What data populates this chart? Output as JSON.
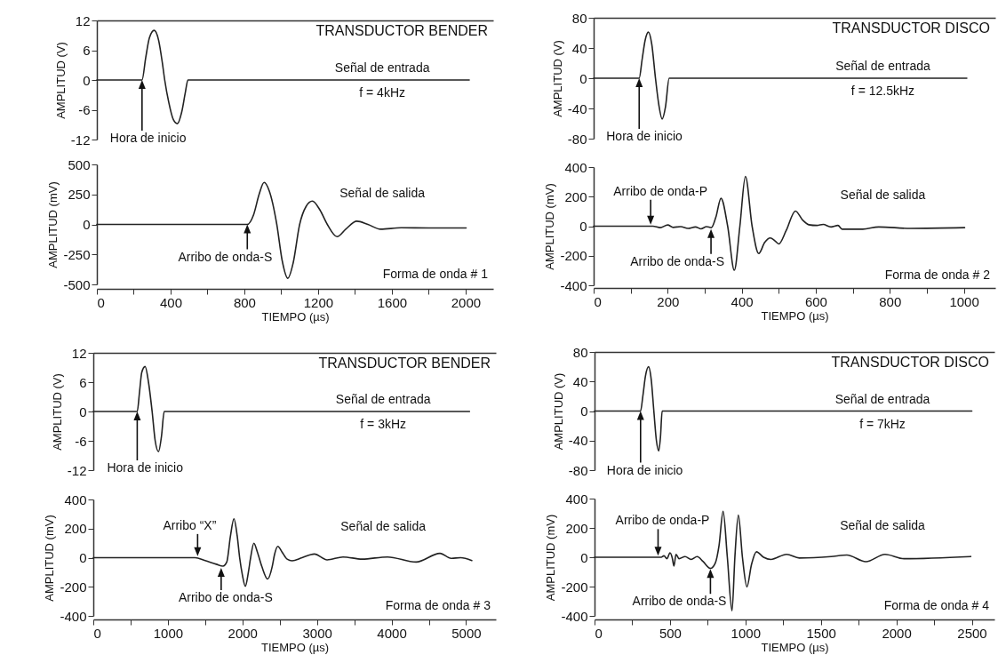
{
  "chart_data": [
    {
      "type": "line",
      "title": "TRANSDUCTOR BENDER",
      "ylabel": "AMPLITUD (V)",
      "tick_labels": "y",
      "xlim": [
        0,
        2150
      ],
      "ylim": [
        -12,
        12
      ],
      "yticks": [
        -12,
        -6,
        0,
        6,
        12
      ],
      "color": "#222222",
      "x": [
        0,
        245,
        265,
        285,
        311,
        335,
        355,
        368,
        390,
        415,
        437,
        460,
        480,
        494,
        2020
      ],
      "values": [
        0,
        0,
        4.5,
        8.5,
        10,
        8,
        3.5,
        0,
        -4.5,
        -8,
        -8.8,
        -6.5,
        -2.5,
        0,
        0
      ],
      "annotations": [
        "Señal de entrada",
        "f = 4kHz",
        "Hora de inicio"
      ]
    },
    {
      "type": "line",
      "xlabel": "TIEMPO (µs)",
      "ylabel": "AMPLITUD (mV)",
      "xlim": [
        0,
        2150
      ],
      "ylim": [
        -500,
        500
      ],
      "yticks": [
        -500,
        -250,
        0,
        250,
        500
      ],
      "color": "#222222",
      "xticks": [
        0,
        {
          "value": 200,
          "label": null
        },
        400,
        {
          "value": 600,
          "label": null
        },
        800,
        {
          "value": 1000,
          "label": null
        },
        1200,
        {
          "value": 1400,
          "label": null
        },
        1600,
        {
          "value": 1800,
          "label": null
        },
        2000
      ],
      "x": [
        0,
        816,
        850,
        880,
        907,
        935,
        976,
        1005,
        1036,
        1065,
        1100,
        1135,
        1169,
        1210,
        1250,
        1303,
        1350,
        1410,
        1470,
        1539,
        1650,
        1800,
        2003
      ],
      "values": [
        0,
        0,
        80,
        250,
        350,
        280,
        0,
        -300,
        -449,
        -320,
        0,
        150,
        194,
        120,
        0,
        -102,
        -40,
        27,
        0,
        -40,
        -28,
        -30,
        -30
      ],
      "annotations": [
        "Señal de salida",
        "Forma de onda # 1",
        {
          "text": "Arribo de onda-S",
          "x": 816,
          "y": 0
        }
      ]
    },
    {
      "type": "line",
      "title": "TRANSDUCTOR DISCO",
      "ylabel": "AMPLITUD (V)",
      "tick_labels": "y",
      "xlim": [
        0,
        1085
      ],
      "ylim": [
        -80,
        80
      ],
      "yticks": [
        -80,
        -40,
        0,
        40,
        80
      ],
      "color": "#222222",
      "x": [
        0,
        123,
        131,
        139,
        148,
        157,
        167,
        176,
        185,
        194,
        204,
        1008
      ],
      "values": [
        0,
        0,
        25,
        50,
        61,
        45,
        0,
        -35,
        -54,
        -38,
        0,
        0
      ],
      "annotations": [
        "Señal de entrada",
        "f = 12.5kHz",
        "Hora de inicio"
      ]
    },
    {
      "type": "line",
      "xlabel": "TIEMPO (µs)",
      "ylabel": "AMPLITUD (mV)",
      "xlim": [
        0,
        1085
      ],
      "ylim": [
        -400,
        400
      ],
      "yticks": [
        -400,
        -200,
        0,
        200,
        400
      ],
      "color": "#222222",
      "xticks": [
        0,
        {
          "value": 100,
          "label": null
        },
        200,
        {
          "value": 300,
          "label": null
        },
        400,
        {
          "value": 500,
          "label": null
        },
        600,
        {
          "value": 700,
          "label": null
        },
        800,
        {
          "value": 900,
          "label": null
        },
        1000
      ],
      "x": [
        0,
        160,
        180,
        200,
        215,
        235,
        255,
        275,
        290,
        305,
        318,
        330,
        344,
        362,
        380,
        395,
        410,
        428,
        446,
        462,
        477,
        490,
        500,
        520,
        545,
        565,
        581,
        603,
        620,
        641,
        660,
        671,
        727,
        770,
        856,
        1002
      ],
      "values": [
        0,
        0,
        -10,
        8,
        -8,
        -3,
        -15,
        -5,
        -18,
        -3,
        -10,
        60,
        189,
        0,
        -298,
        0,
        337,
        0,
        -185,
        -110,
        -80,
        -100,
        -120,
        -30,
        102,
        40,
        10,
        5,
        12,
        -5,
        5,
        -20,
        -20,
        -5,
        -15,
        -10
      ],
      "annotations": [
        "Señal de salida",
        "Forma de onda # 2",
        {
          "text": "Arribo de onda-P",
          "x": 154,
          "y": 10
        },
        {
          "text": "Arribo de onda-S",
          "x": 317,
          "y": -20
        }
      ]
    },
    {
      "type": "line",
      "title": "TRANSDUCTOR BENDER",
      "ylabel": "AMPLITUD (V)",
      "tick_labels": "y",
      "xlim": [
        0,
        5400
      ],
      "ylim": [
        -12,
        12
      ],
      "yticks": [
        -12,
        -6,
        0,
        6,
        12
      ],
      "color": "#222222",
      "x": [
        0,
        589,
        620,
        650,
        695,
        740,
        789,
        830,
        875,
        915,
        951,
        5047
      ],
      "values": [
        0,
        0,
        4,
        8,
        9.2,
        6,
        0,
        -6,
        -8.2,
        -5,
        0,
        0
      ],
      "annotations": [
        "Señal de entrada",
        "f = 3kHz",
        "Hora de inicio"
      ]
    },
    {
      "type": "line",
      "xlabel": "TIEMPO (µs)",
      "ylabel": "AMPLITUD (mV)",
      "xlim": [
        0,
        5400
      ],
      "ylim": [
        -400,
        400
      ],
      "yticks": [
        -400,
        -200,
        0,
        200,
        400
      ],
      "color": "#222222",
      "xticks": [
        0,
        {
          "value": 500,
          "label": null
        },
        1000,
        {
          "value": 1500,
          "label": null
        },
        2000,
        {
          "value": 2500,
          "label": null
        },
        3000,
        {
          "value": 3500,
          "label": null
        },
        4000,
        {
          "value": 4500,
          "label": null
        },
        5000
      ],
      "x": [
        0,
        1365,
        1500,
        1650,
        1740,
        1790,
        1840,
        1886,
        1930,
        1963,
        2000,
        2039,
        2080,
        2110,
        2154,
        2200,
        2260,
        2338,
        2400,
        2430,
        2474,
        2530,
        2600,
        2666,
        2800,
        2965,
        3136,
        3349,
        3605,
        3946,
        4330,
        4650,
        4800,
        4927,
        5077
      ],
      "values": [
        0,
        0,
        -20,
        -45,
        -58,
        -30,
        150,
        267,
        150,
        0,
        -120,
        -196,
        -100,
        0,
        99,
        40,
        -60,
        -147,
        -60,
        20,
        78,
        40,
        -10,
        -21,
        0,
        25,
        -15,
        5,
        -10,
        5,
        -30,
        30,
        -5,
        0,
        -20
      ],
      "annotations": [
        "Señal de salida",
        "Forma de onda # 3",
        {
          "text": "Arribo “X”",
          "x": 1399,
          "y": 10
        },
        {
          "text": "Arribo de onda-S",
          "x": 1715,
          "y": -70
        }
      ]
    },
    {
      "type": "line",
      "title": "TRANSDUCTOR DISCO",
      "ylabel": "AMPLITUD (V)",
      "tick_labels": "y",
      "xlim": [
        0,
        2650
      ],
      "ylim": [
        -80,
        80
      ],
      "yticks": [
        -80,
        -40,
        0,
        40,
        80
      ],
      "color": "#222222",
      "x": [
        0,
        305,
        320,
        338,
        358,
        376,
        393,
        410,
        425,
        437,
        448,
        2500
      ],
      "values": [
        0,
        0,
        20,
        48,
        60,
        42,
        0,
        -40,
        -54,
        -35,
        0,
        0
      ],
      "annotations": [
        "Señal de entrada",
        "f = 7kHz",
        "Hora de inicio"
      ]
    },
    {
      "type": "line",
      "xlabel": "TIEMPO (µs)",
      "ylabel": "AMPLITUD (mV)",
      "xlim": [
        0,
        2650
      ],
      "ylim": [
        -400,
        400
      ],
      "yticks": [
        -400,
        -200,
        0,
        200,
        400
      ],
      "color": "#222222",
      "xticks": [
        0,
        {
          "value": 250,
          "label": null
        },
        500,
        {
          "value": 750,
          "label": null
        },
        1000,
        {
          "value": 1250,
          "label": null
        },
        1500,
        {
          "value": 1750,
          "label": null
        },
        2000,
        {
          "value": 2250,
          "label": null
        },
        2500
      ],
      "x": [
        0,
        442,
        460,
        480,
        500,
        515,
        526,
        540,
        560,
        600,
        640,
        680,
        720,
        768,
        800,
        825,
        852,
        880,
        911,
        930,
        953,
        980,
        1010,
        1040,
        1073,
        1120,
        1168,
        1273,
        1357,
        1567,
        1672,
        1798,
        1925,
        2051,
        2493
      ],
      "values": [
        0,
        0,
        10,
        -10,
        30,
        -5,
        -60,
        20,
        -10,
        5,
        -15,
        5,
        -30,
        -76,
        -40,
        80,
        313,
        0,
        -365,
        0,
        287,
        0,
        -202,
        -50,
        37,
        0,
        -15,
        20,
        -5,
        5,
        15,
        -30,
        20,
        -10,
        5
      ],
      "annotations": [
        "Señal de salida",
        "Forma de onda # 4",
        {
          "text": "Arribo de onda-P",
          "x": 421,
          "y": 10
        },
        {
          "text": "Arribo de onda-S",
          "x": 768,
          "y": -80
        }
      ]
    }
  ]
}
